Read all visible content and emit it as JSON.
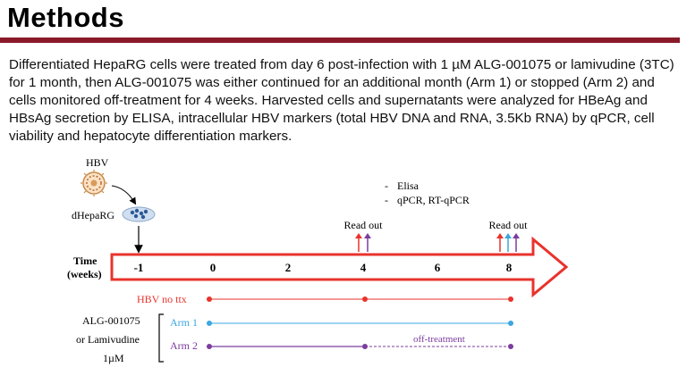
{
  "slide": {
    "title": "Methods",
    "paragraph": "Differentiated HepaRG cells were treated from day 6 post-infection with 1 µM ALG-001075 or lamivudine (3TC) for 1 month, then ALG-001075 was either continued for an additional month (Arm 1) or stopped (Arm 2) and cells monitored off-treatment for 4 weeks. Harvested cells and supernatants were analyzed for HBeAg and HBsAg secretion by ELISA, intracellular HBV markers (total HBV DNA and RNA, 3.5Kb RNA) by qPCR, cell viability and hepatocyte differentiation markers."
  },
  "diagram": {
    "hbv_label": "HBV",
    "cells_label": "dHepaRG",
    "time_label_line1": "Time",
    "time_label_line2": "(weeks)",
    "ticks": [
      "-1",
      "0",
      "2",
      "4",
      "6",
      "8"
    ],
    "readout_labels": [
      "Read out",
      "Read out"
    ],
    "assays": [
      "Elisa",
      "qPCR, RT-qPCR"
    ],
    "treatment_line1": "ALG-001075",
    "treatment_line2": "or Lamivudine",
    "treatment_line3": "1µM",
    "rows": [
      {
        "label": "HBV no ttx",
        "color": "#e8332c"
      },
      {
        "label": "Arm 1",
        "color": "#3aa7e0"
      },
      {
        "label": "Arm 2",
        "color": "#7b3d9e"
      }
    ],
    "off_treatment_label": "off-treatment",
    "colors": {
      "arrow": "#e8332c",
      "rule": "#8a1a2a",
      "red": "#e8332c",
      "blue": "#3aa7e0",
      "purple": "#7b3d9e"
    }
  }
}
